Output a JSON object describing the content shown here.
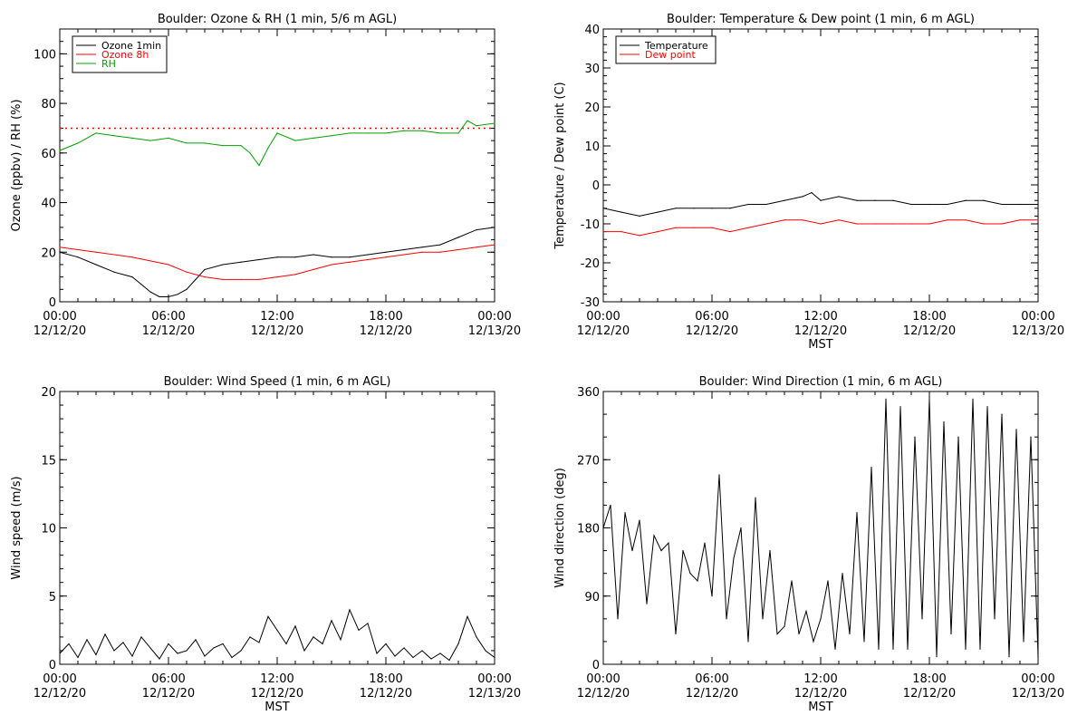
{
  "chart_data": [
    {
      "type": "line",
      "title": "Boulder: Ozone & RH (1 min, 5/6 m AGL)",
      "xlabel": "",
      "ylabel": "Ozone (ppbv) / RH (%)",
      "ylim": [
        0,
        110
      ],
      "yticks": [
        0,
        20,
        40,
        60,
        80,
        100
      ],
      "xlim": [
        0,
        24
      ],
      "xtick_labels": [
        [
          "00:00",
          "12/12/20"
        ],
        [
          "06:00",
          "12/12/20"
        ],
        [
          "12:00",
          "12/12/20"
        ],
        [
          "18:00",
          "12/12/20"
        ],
        [
          "00:00",
          "12/13/20"
        ]
      ],
      "legend": "top-left",
      "reference_line": {
        "y": 70,
        "color": "#ff0000",
        "style": "dotted"
      },
      "series": [
        {
          "name": "Ozone 1min",
          "color": "#000000",
          "x": [
            0,
            1,
            2,
            3,
            4,
            4.5,
            5,
            5.5,
            6,
            6.5,
            7,
            7.5,
            8,
            9,
            10,
            11,
            12,
            13,
            14,
            15,
            16,
            17,
            18,
            19,
            20,
            21,
            22,
            23,
            24
          ],
          "y": [
            20,
            18,
            15,
            12,
            10,
            7,
            4,
            2,
            2,
            3,
            5,
            9,
            13,
            15,
            16,
            17,
            18,
            18,
            19,
            18,
            18,
            19,
            20,
            21,
            22,
            23,
            26,
            29,
            30
          ]
        },
        {
          "name": "Ozone 8h",
          "color": "#ff0000",
          "x": [
            0,
            2,
            4,
            6,
            7,
            8,
            9,
            10,
            11,
            12,
            13,
            14,
            15,
            16,
            17,
            18,
            19,
            20,
            21,
            22,
            23,
            24
          ],
          "y": [
            22,
            20,
            18,
            15,
            12,
            10,
            9,
            9,
            9,
            10,
            11,
            13,
            15,
            16,
            17,
            18,
            19,
            20,
            20,
            21,
            22,
            23
          ]
        },
        {
          "name": "RH",
          "color": "#00a000",
          "x": [
            0,
            1,
            2,
            3,
            4,
            5,
            6,
            7,
            8,
            9,
            10,
            10.5,
            11,
            11.5,
            12,
            13,
            14,
            15,
            16,
            17,
            18,
            19,
            20,
            21,
            22,
            22.5,
            23,
            24
          ],
          "y": [
            61,
            64,
            68,
            67,
            66,
            65,
            66,
            64,
            64,
            63,
            63,
            60,
            55,
            62,
            68,
            65,
            66,
            67,
            68,
            68,
            68,
            69,
            69,
            68,
            68,
            73,
            71,
            72
          ]
        }
      ]
    },
    {
      "type": "line",
      "title": "Boulder: Temperature & Dew point (1 min, 6 m AGL)",
      "xlabel": "MST",
      "ylabel": "Temperature / Dew point (C)",
      "ylim": [
        -30,
        40
      ],
      "yticks": [
        -30,
        -20,
        -10,
        0,
        10,
        20,
        30,
        40
      ],
      "xlim": [
        0,
        24
      ],
      "xtick_labels": [
        [
          "00:00",
          "12/12/20"
        ],
        [
          "06:00",
          "12/12/20"
        ],
        [
          "12:00",
          "12/12/20"
        ],
        [
          "18:00",
          "12/12/20"
        ],
        [
          "00:00",
          "12/13/20"
        ]
      ],
      "legend": "top-left",
      "series": [
        {
          "name": "Temperature",
          "color": "#000000",
          "x": [
            0,
            1,
            2,
            3,
            4,
            5,
            6,
            7,
            8,
            9,
            10,
            11,
            11.5,
            12,
            13,
            14,
            15,
            16,
            17,
            18,
            19,
            20,
            21,
            22,
            23,
            24
          ],
          "y": [
            -6,
            -7,
            -8,
            -7,
            -6,
            -6,
            -6,
            -6,
            -5,
            -5,
            -4,
            -3,
            -2,
            -4,
            -3,
            -4,
            -4,
            -4,
            -5,
            -5,
            -5,
            -4,
            -4,
            -5,
            -5,
            -5
          ]
        },
        {
          "name": "Dew point",
          "color": "#ff0000",
          "x": [
            0,
            1,
            2,
            3,
            4,
            5,
            6,
            7,
            8,
            9,
            10,
            11,
            12,
            13,
            14,
            15,
            16,
            17,
            18,
            19,
            20,
            21,
            22,
            23,
            24
          ],
          "y": [
            -12,
            -12,
            -13,
            -12,
            -11,
            -11,
            -11,
            -12,
            -11,
            -10,
            -9,
            -9,
            -10,
            -9,
            -10,
            -10,
            -10,
            -10,
            -10,
            -9,
            -9,
            -10,
            -10,
            -9,
            -9
          ]
        }
      ]
    },
    {
      "type": "line",
      "title": "Boulder: Wind Speed (1 min, 6 m AGL)",
      "xlabel": "MST",
      "ylabel": "Wind speed (m/s)",
      "ylim": [
        0,
        20
      ],
      "yticks": [
        0,
        5,
        10,
        15,
        20
      ],
      "xlim": [
        0,
        24
      ],
      "xtick_labels": [
        [
          "00:00",
          "12/12/20"
        ],
        [
          "06:00",
          "12/12/20"
        ],
        [
          "12:00",
          "12/12/20"
        ],
        [
          "18:00",
          "12/12/20"
        ],
        [
          "00:00",
          "12/13/20"
        ]
      ],
      "series": [
        {
          "name": "",
          "color": "#000000",
          "x": [
            0,
            0.5,
            1,
            1.5,
            2,
            2.5,
            3,
            3.5,
            4,
            4.5,
            5,
            5.5,
            6,
            6.5,
            7,
            7.5,
            8,
            8.5,
            9,
            9.5,
            10,
            10.5,
            11,
            11.5,
            12,
            12.5,
            13,
            13.5,
            14,
            14.5,
            15,
            15.5,
            16,
            16.5,
            17,
            17.5,
            18,
            18.5,
            19,
            19.5,
            20,
            20.5,
            21,
            21.5,
            22,
            22.5,
            23,
            23.5,
            24
          ],
          "y": [
            0.8,
            1.5,
            0.5,
            1.8,
            0.7,
            2.2,
            1.0,
            1.6,
            0.6,
            2.0,
            1.2,
            0.4,
            1.5,
            0.8,
            1.0,
            1.8,
            0.6,
            1.2,
            1.5,
            0.5,
            1.0,
            2.0,
            1.6,
            3.5,
            2.5,
            1.5,
            2.8,
            1.0,
            2.0,
            1.5,
            3.2,
            1.8,
            4.0,
            2.5,
            3.0,
            0.8,
            1.5,
            0.6,
            1.2,
            0.5,
            1.0,
            0.4,
            0.8,
            0.3,
            1.5,
            3.5,
            2.0,
            1.0,
            0.5
          ]
        }
      ]
    },
    {
      "type": "line",
      "title": "Boulder: Wind Direction (1 min, 6 m AGL)",
      "xlabel": "MST",
      "ylabel": "Wind direction (deg)",
      "ylim": [
        0,
        360
      ],
      "yticks": [
        0,
        90,
        180,
        270,
        360
      ],
      "xlim": [
        0,
        24
      ],
      "xtick_labels": [
        [
          "00:00",
          "12/12/20"
        ],
        [
          "06:00",
          "12/12/20"
        ],
        [
          "12:00",
          "12/12/20"
        ],
        [
          "18:00",
          "12/12/20"
        ],
        [
          "00:00",
          "12/13/20"
        ]
      ],
      "series": [
        {
          "name": "",
          "color": "#000000",
          "x": [
            0,
            0.4,
            0.8,
            1.2,
            1.6,
            2,
            2.4,
            2.8,
            3.2,
            3.6,
            4,
            4.4,
            4.8,
            5.2,
            5.6,
            6,
            6.4,
            6.8,
            7.2,
            7.6,
            8,
            8.4,
            8.8,
            9.2,
            9.6,
            10,
            10.4,
            10.8,
            11.2,
            11.6,
            12,
            12.4,
            12.8,
            13.2,
            13.6,
            14,
            14.4,
            14.8,
            15.2,
            15.6,
            16,
            16.4,
            16.8,
            17.2,
            17.6,
            18,
            18.4,
            18.8,
            19.2,
            19.6,
            20,
            20.4,
            20.8,
            21.2,
            21.6,
            22,
            22.4,
            22.8,
            23.2,
            23.6,
            24
          ],
          "y": [
            180,
            210,
            60,
            200,
            150,
            190,
            80,
            170,
            150,
            160,
            40,
            150,
            120,
            110,
            160,
            90,
            250,
            60,
            140,
            180,
            30,
            220,
            60,
            150,
            40,
            50,
            110,
            40,
            70,
            30,
            60,
            110,
            20,
            120,
            40,
            200,
            30,
            260,
            20,
            350,
            20,
            340,
            20,
            300,
            60,
            350,
            10,
            320,
            40,
            300,
            20,
            350,
            20,
            340,
            60,
            330,
            10,
            310,
            30,
            300,
            10
          ]
        }
      ]
    }
  ]
}
